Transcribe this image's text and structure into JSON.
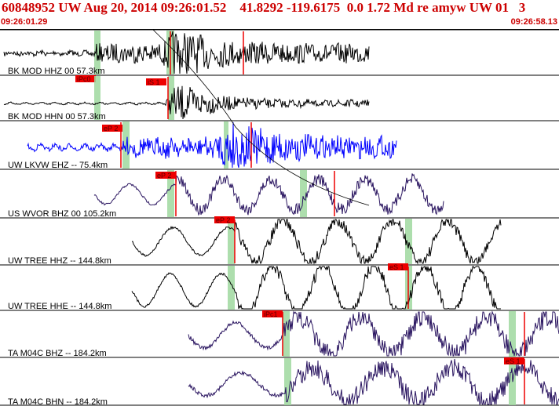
{
  "header": {
    "title": "60848952 UW Aug 20, 2014 09:26:01.52    41.8292 -119.6175  0.0 1.72 Md re amyw UW 01   3",
    "start_time": "09:26:01.29",
    "end_time": "09:26:58.13"
  },
  "colors": {
    "header_text": "#cc0000",
    "pick_flag": "#ee0000",
    "pick_window": "#9fd89f",
    "trace_default": "#000000",
    "trace_blue": "#0000ff",
    "trace_purple": "#2a1560"
  },
  "traces": [
    {
      "label": "BK MOD HHZ 00 57.3km",
      "pick": "iPc0",
      "color": "black"
    },
    {
      "label": "BK MOD HHN 00 57.3km",
      "pick": "iS 1",
      "color": "black"
    },
    {
      "label": "UW LKVW EHZ -- 75.4km",
      "pick": "eP 2",
      "color": "blue"
    },
    {
      "label": "US WVOR BHZ 00 105.2km",
      "pick": "eP 2",
      "color": "purple"
    },
    {
      "label": "UW TREE HHZ -- 144.8km",
      "pick": "eP 2",
      "color": "black"
    },
    {
      "label": "UW TREE HHE -- 144.8km",
      "pick": "eS 1",
      "color": "black"
    },
    {
      "label": "TA M04C BHZ -- 184.2km",
      "pick": "iPc1",
      "color": "purple"
    },
    {
      "label": "TA M04C BHN -- 184.2km",
      "pick": "eS 1",
      "color": "purple"
    }
  ]
}
